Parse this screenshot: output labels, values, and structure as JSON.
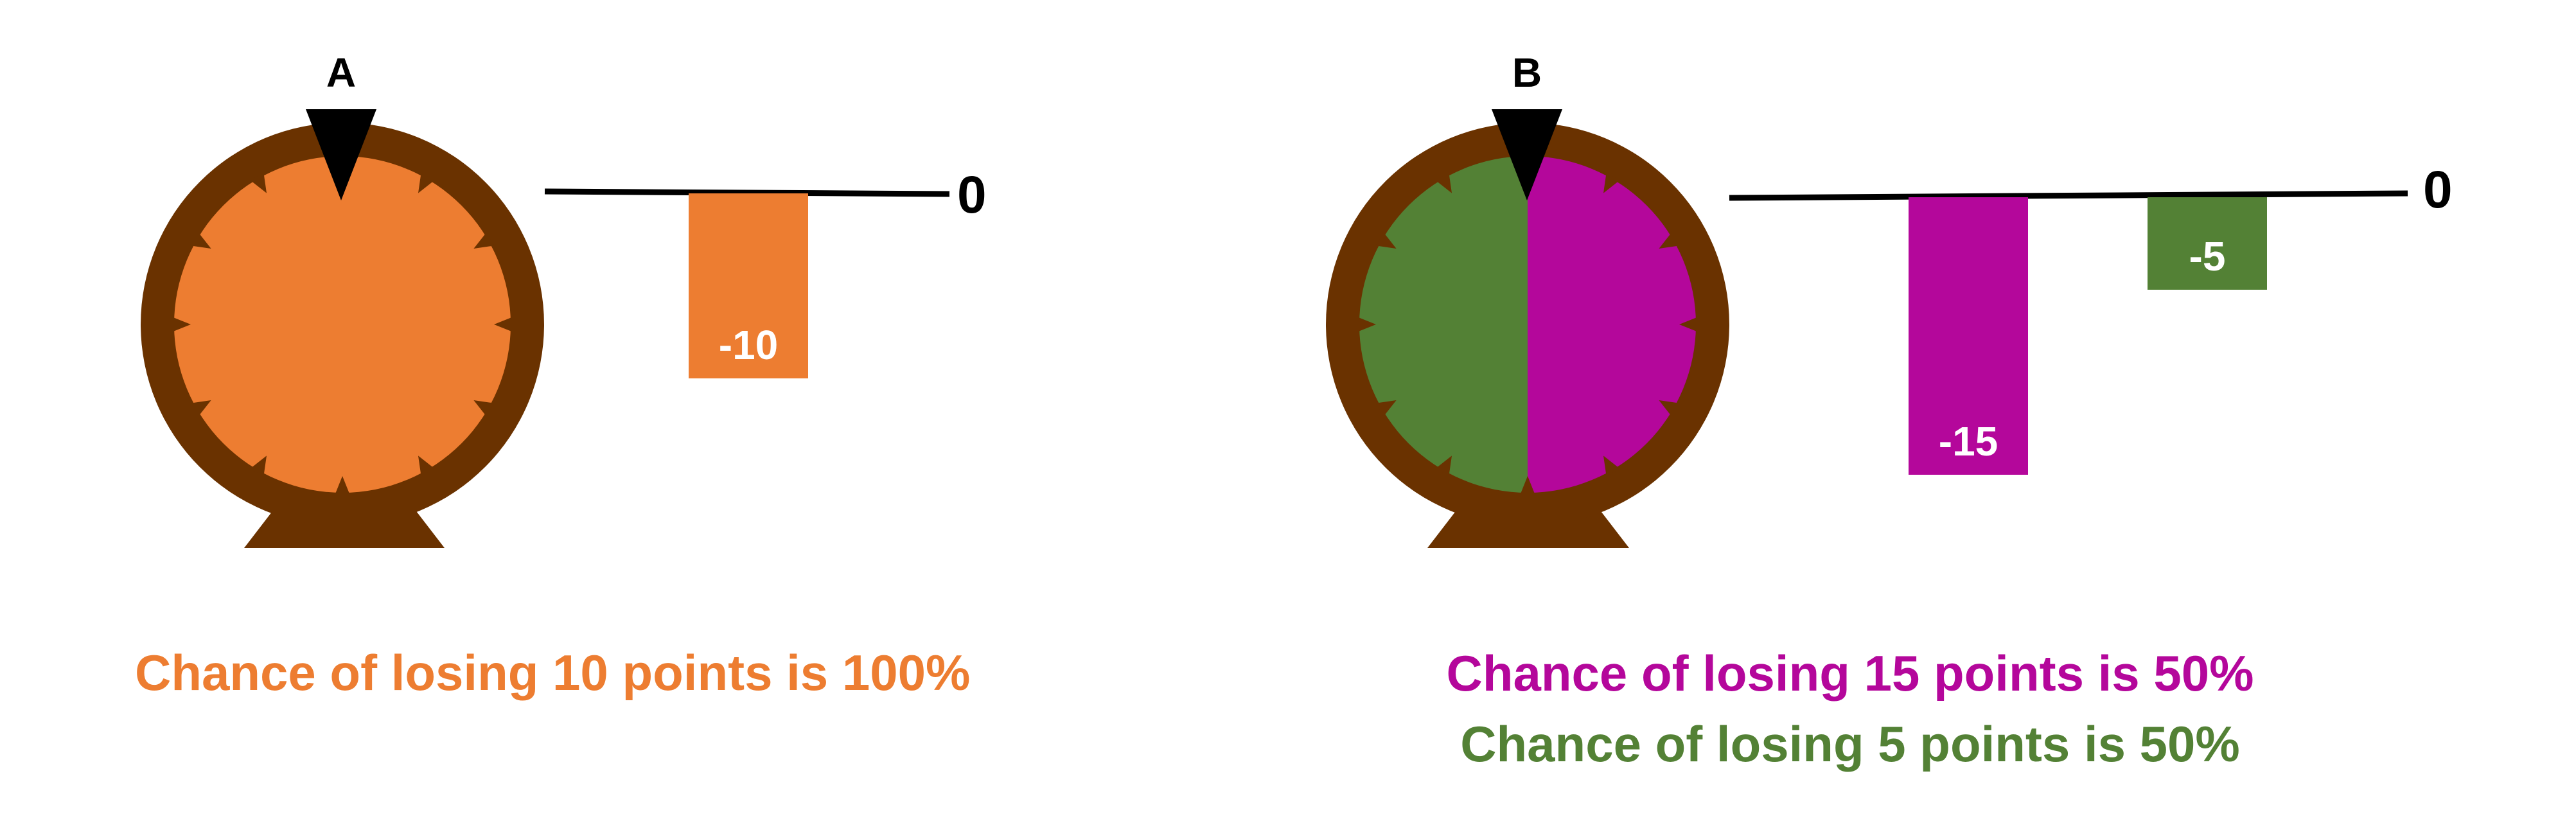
{
  "colors": {
    "orange": "#ED7D31",
    "magenta": "#B4079B",
    "green": "#538135",
    "brown": "#6A3200",
    "black": "#000000",
    "white": "#FFFFFF"
  },
  "wheel_a": {
    "letter": "A",
    "segments": [
      {
        "color_key": "orange",
        "probability": 1.0
      }
    ]
  },
  "wheel_b": {
    "letter": "B",
    "segments": [
      {
        "color_key": "magenta",
        "probability": 0.5
      },
      {
        "color_key": "green",
        "probability": 0.5
      }
    ]
  },
  "chart_data": [
    {
      "type": "bar",
      "zero_label": "0",
      "categories": [
        ""
      ],
      "values": [
        -10
      ],
      "value_labels": [
        "-10"
      ],
      "bar_colors": [
        "#ED7D31"
      ],
      "ylim": [
        -15,
        0
      ]
    },
    {
      "type": "bar",
      "zero_label": "0",
      "categories": [
        "",
        ""
      ],
      "values": [
        -15,
        -5
      ],
      "value_labels": [
        "-15",
        "-5"
      ],
      "bar_colors": [
        "#B4079B",
        "#538135"
      ],
      "ylim": [
        -15,
        0
      ]
    }
  ],
  "captions": {
    "a_line1": "Chance of losing 10 points is 100%",
    "b_line1": "Chance of losing 15 points is 50%",
    "b_line2": "Chance of losing 5 points is 50%"
  }
}
